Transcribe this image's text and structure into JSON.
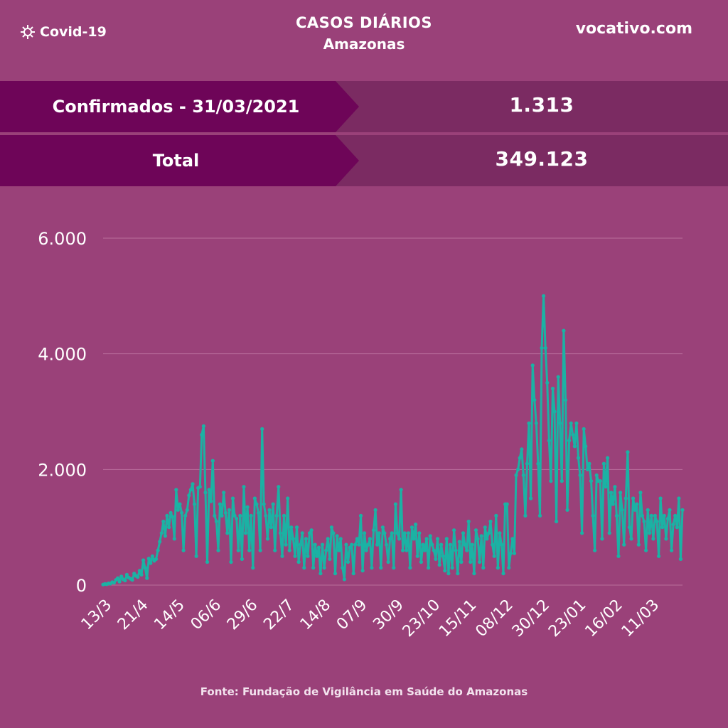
{
  "header": {
    "brand_label": "Covid-19",
    "brand_icon": "virus-icon",
    "title": "CASOS DIÁRIOS",
    "subtitle": "Amazonas",
    "site": "vocativo.com"
  },
  "stats": {
    "confirmed_label": "Confirmados - 31/03/2021",
    "confirmed_value": "1.313",
    "total_label": "Total",
    "total_value": "349.123"
  },
  "colors": {
    "background": "#9a4179",
    "label_box": "#6e0558",
    "value_box": "#7b2b62",
    "line": "#1bb2a4"
  },
  "chart_data": {
    "type": "line",
    "title": "CASOS DIÁRIOS",
    "xlabel": "",
    "ylabel": "",
    "ylim": [
      0,
      6000
    ],
    "yticks": [
      0,
      2000,
      4000,
      6000
    ],
    "ytick_labels": [
      "0",
      "2.000",
      "4.000",
      "6.000"
    ],
    "xtick_labels": [
      "13/3",
      "21/4",
      "14/5",
      "06/6",
      "29/6",
      "22/7",
      "14/8",
      "07/9",
      "30/9",
      "23/10",
      "15/11",
      "08/12",
      "30/12",
      "23/01",
      "16/02",
      "11/03"
    ],
    "grid": true,
    "legend": "none",
    "series": [
      {
        "values": [
          10,
          20,
          15,
          30,
          25,
          50,
          40,
          90,
          120,
          60,
          150,
          100,
          80,
          180,
          130,
          110,
          90,
          200,
          160,
          140,
          250,
          180,
          430,
          300,
          120,
          460,
          380,
          500,
          420,
          450,
          600,
          750,
          900,
          1100,
          850,
          1200,
          1000,
          1250,
          1180,
          800,
          1650,
          1300,
          1400,
          1250,
          600,
          1200,
          1300,
          1550,
          1650,
          1750,
          1400,
          500,
          1680,
          1700,
          2600,
          2750,
          1600,
          400,
          1650,
          1450,
          2150,
          1200,
          1100,
          600,
          1400,
          1200,
          1600,
          1250,
          900,
          1300,
          400,
          1500,
          1200,
          1150,
          600,
          1200,
          450,
          1700,
          900,
          1350,
          600,
          1200,
          300,
          1500,
          1400,
          1250,
          600,
          2700,
          1400,
          1200,
          800,
          1300,
          1000,
          1400,
          600,
          1200,
          1700,
          900,
          500,
          1200,
          700,
          1500,
          600,
          1000,
          800,
          500,
          1000,
          400,
          700,
          900,
          300,
          800,
          500,
          900,
          950,
          300,
          700,
          500,
          650,
          200,
          700,
          300,
          600,
          800,
          450,
          1000,
          900,
          200,
          850,
          600,
          800,
          300,
          100,
          700,
          400,
          650,
          700,
          200,
          700,
          800,
          700,
          1200,
          250,
          900,
          600,
          700,
          800,
          300,
          950,
          1300,
          700,
          900,
          300,
          1000,
          900,
          700,
          400,
          800,
          900,
          300,
          1400,
          900,
          800,
          1650,
          600,
          900,
          600,
          900,
          300,
          1000,
          800,
          1050,
          500,
          900,
          400,
          700,
          600,
          800,
          300,
          850,
          700,
          600,
          450,
          800,
          350,
          700,
          500,
          250,
          800,
          200,
          700,
          300,
          950,
          600,
          200,
          750,
          400,
          900,
          700,
          600,
          1100,
          400,
          700,
          200,
          950,
          800,
          400,
          850,
          300,
          1000,
          800,
          900,
          1100,
          700,
          500,
          1200,
          300,
          900,
          700,
          200,
          1400,
          1400,
          300,
          550,
          800,
          550,
          1900,
          2000,
          2200,
          2350,
          1900,
          1200,
          2100,
          2800,
          1500,
          3800,
          3200,
          2800,
          2100,
          1200,
          4100,
          5000,
          4100,
          3500,
          2500,
          1800,
          3400,
          3000,
          1100,
          3600,
          2800,
          1800,
          4400,
          3200,
          1300,
          2500,
          2800,
          2600,
          2400,
          2800,
          2200,
          1900,
          900,
          2700,
          2400,
          2000,
          2100,
          1800,
          1200,
          600,
          1900,
          1800,
          1800,
          800,
          2100,
          1700,
          2200,
          900,
          1600,
          1400,
          1700,
          1200,
          500,
          1600,
          1300,
          700,
          1500,
          2300,
          1000,
          800,
          1500,
          1300,
          1400,
          700,
          1600,
          1200,
          1100,
          600,
          1300,
          900,
          1200,
          800,
          1200,
          1100,
          500,
          1500,
          1000,
          1200,
          800,
          1150,
          1300,
          600,
          1050,
          1200,
          1000,
          1500,
          450,
          1300
        ]
      }
    ]
  },
  "footer": {
    "source": "Fonte: Fundação de Vigilância em Saúde do Amazonas"
  }
}
